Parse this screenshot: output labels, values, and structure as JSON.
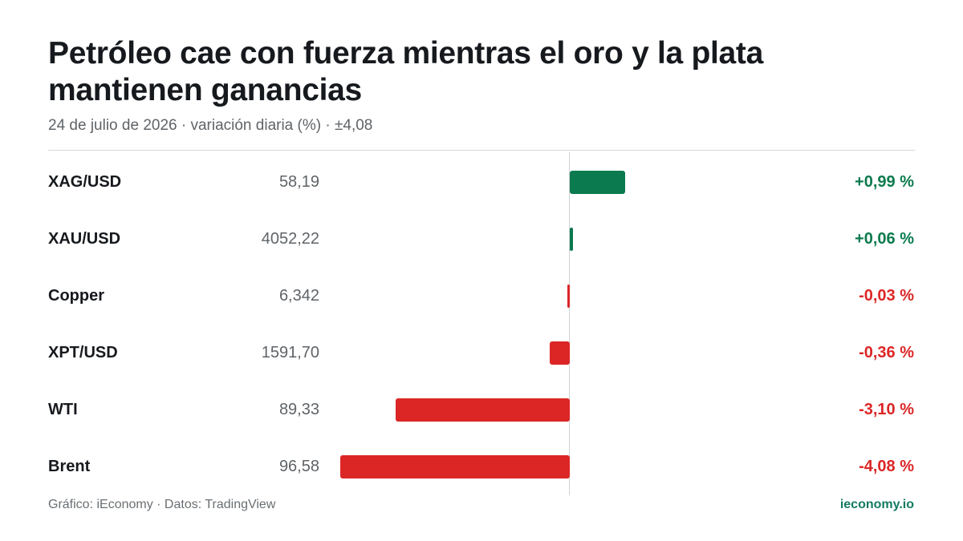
{
  "header": {
    "title": "Petróleo cae con fuerza mientras el oro y la plata mantienen ganancias",
    "subtitle": "24 de julio de 2026 · variación diaria (%) · ±4,08"
  },
  "footer": {
    "credit": "Gráfico: iEconomy · Datos: TradingView",
    "brand": "ieconomy.io"
  },
  "colors": {
    "positive": "#0b7a4e",
    "negative": "#dc2626"
  },
  "chart_data": {
    "type": "bar",
    "orientation": "horizontal",
    "categories": [
      "XAG/USD",
      "XAU/USD",
      "Copper",
      "XPT/USD",
      "WTI",
      "Brent"
    ],
    "values": [
      0.99,
      0.06,
      -0.03,
      -0.36,
      -3.1,
      -4.08
    ],
    "xlim": [
      -4.08,
      4.08
    ],
    "rows": [
      {
        "name": "XAG/USD",
        "price": "58,19",
        "change": 0.99,
        "label": "+0,99 %"
      },
      {
        "name": "XAU/USD",
        "price": "4052,22",
        "change": 0.06,
        "label": "+0,06 %"
      },
      {
        "name": "Copper",
        "price": "6,342",
        "change": -0.03,
        "label": "-0,03 %"
      },
      {
        "name": "XPT/USD",
        "price": "1591,70",
        "change": -0.36,
        "label": "-0,36 %"
      },
      {
        "name": "WTI",
        "price": "89,33",
        "change": -3.1,
        "label": "-3,10 %"
      },
      {
        "name": "Brent",
        "price": "96,58",
        "change": -4.08,
        "label": "-4,08 %"
      }
    ]
  }
}
